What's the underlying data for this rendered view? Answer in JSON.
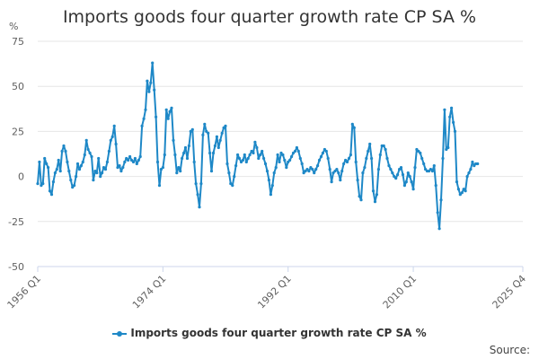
{
  "chart_data": {
    "type": "line",
    "title": "Imports goods four quarter growth rate CP SA %",
    "ylabel": "%",
    "ylim": [
      -50,
      75
    ],
    "yticks": [
      -50,
      -25,
      0,
      25,
      50,
      75
    ],
    "xticks": [
      "1956 Q1",
      "1974 Q1",
      "1992 Q1",
      "2010 Q1",
      "2025 Q4"
    ],
    "grid": "horizontal",
    "legend_position": "bottom",
    "source_label": "Source:",
    "series": [
      {
        "name": "Imports goods four quarter growth rate CP SA %",
        "color": "#1e88c7",
        "points": [
          [
            1956.0,
            -4
          ],
          [
            1956.25,
            8
          ],
          [
            1956.5,
            -5
          ],
          [
            1956.75,
            -4
          ],
          [
            1957.0,
            10
          ],
          [
            1957.25,
            7
          ],
          [
            1957.5,
            5
          ],
          [
            1957.75,
            -8
          ],
          [
            1958.0,
            -10
          ],
          [
            1958.25,
            -3
          ],
          [
            1958.5,
            2
          ],
          [
            1958.75,
            4
          ],
          [
            1959.0,
            9
          ],
          [
            1959.25,
            3
          ],
          [
            1959.5,
            14
          ],
          [
            1959.75,
            17
          ],
          [
            1960.0,
            14
          ],
          [
            1960.25,
            8
          ],
          [
            1960.5,
            3
          ],
          [
            1960.75,
            -2
          ],
          [
            1961.0,
            -6
          ],
          [
            1961.25,
            -5
          ],
          [
            1961.5,
            0
          ],
          [
            1961.75,
            7
          ],
          [
            1962.0,
            4
          ],
          [
            1962.25,
            6
          ],
          [
            1962.5,
            8
          ],
          [
            1962.75,
            12
          ],
          [
            1963.0,
            20
          ],
          [
            1963.25,
            15
          ],
          [
            1963.5,
            13
          ],
          [
            1963.75,
            11
          ],
          [
            1964.0,
            -2
          ],
          [
            1964.25,
            3
          ],
          [
            1964.5,
            2
          ],
          [
            1964.75,
            10
          ],
          [
            1965.0,
            0
          ],
          [
            1965.25,
            2
          ],
          [
            1965.5,
            5
          ],
          [
            1965.75,
            4
          ],
          [
            1966.0,
            8
          ],
          [
            1966.25,
            14
          ],
          [
            1966.5,
            20
          ],
          [
            1966.75,
            22
          ],
          [
            1967.0,
            28
          ],
          [
            1967.25,
            18
          ],
          [
            1967.5,
            5
          ],
          [
            1967.75,
            6
          ],
          [
            1968.0,
            3
          ],
          [
            1968.25,
            5
          ],
          [
            1968.5,
            8
          ],
          [
            1968.75,
            10
          ],
          [
            1969.0,
            9
          ],
          [
            1969.25,
            11
          ],
          [
            1969.5,
            9
          ],
          [
            1969.75,
            8
          ],
          [
            1970.0,
            10
          ],
          [
            1970.25,
            7
          ],
          [
            1970.5,
            9
          ],
          [
            1970.75,
            11
          ],
          [
            1971.0,
            28
          ],
          [
            1971.25,
            32
          ],
          [
            1971.5,
            37
          ],
          [
            1971.75,
            53
          ],
          [
            1972.0,
            47
          ],
          [
            1972.25,
            52
          ],
          [
            1972.5,
            63
          ],
          [
            1972.75,
            48
          ],
          [
            1973.0,
            33
          ],
          [
            1973.25,
            8
          ],
          [
            1973.5,
            -5
          ],
          [
            1973.75,
            4
          ],
          [
            1974.0,
            5
          ],
          [
            1974.25,
            12
          ],
          [
            1974.5,
            37
          ],
          [
            1974.75,
            32
          ],
          [
            1975.0,
            36
          ],
          [
            1975.25,
            38
          ],
          [
            1975.5,
            20
          ],
          [
            1975.75,
            12
          ],
          [
            1976.0,
            2
          ],
          [
            1976.25,
            5
          ],
          [
            1976.5,
            3
          ],
          [
            1976.75,
            10
          ],
          [
            1977.0,
            13
          ],
          [
            1977.25,
            16
          ],
          [
            1977.5,
            10
          ],
          [
            1977.75,
            17
          ],
          [
            1978.0,
            25
          ],
          [
            1978.25,
            26
          ],
          [
            1978.5,
            8
          ],
          [
            1978.75,
            -4
          ],
          [
            1979.0,
            -10
          ],
          [
            1979.25,
            -17
          ],
          [
            1979.5,
            -4
          ],
          [
            1979.75,
            23
          ],
          [
            1980.0,
            29
          ],
          [
            1980.25,
            25
          ],
          [
            1980.5,
            24
          ],
          [
            1980.75,
            13
          ],
          [
            1981.0,
            3
          ],
          [
            1981.25,
            13
          ],
          [
            1981.5,
            17
          ],
          [
            1981.75,
            22
          ],
          [
            1982.0,
            16
          ],
          [
            1982.25,
            20
          ],
          [
            1982.5,
            24
          ],
          [
            1982.75,
            27
          ],
          [
            1983.0,
            28
          ],
          [
            1983.25,
            7
          ],
          [
            1983.5,
            2
          ],
          [
            1983.75,
            -4
          ],
          [
            1984.0,
            -5
          ],
          [
            1984.25,
            0
          ],
          [
            1984.5,
            6
          ],
          [
            1984.75,
            12
          ],
          [
            1985.0,
            10
          ],
          [
            1985.25,
            8
          ],
          [
            1985.5,
            9
          ],
          [
            1985.75,
            12
          ],
          [
            1986.0,
            8
          ],
          [
            1986.25,
            10
          ],
          [
            1986.5,
            12
          ],
          [
            1986.75,
            14
          ],
          [
            1987.0,
            13
          ],
          [
            1987.25,
            19
          ],
          [
            1987.5,
            16
          ],
          [
            1987.75,
            10
          ],
          [
            1988.0,
            12
          ],
          [
            1988.25,
            14
          ],
          [
            1988.5,
            10
          ],
          [
            1988.75,
            7
          ],
          [
            1989.0,
            3
          ],
          [
            1989.25,
            -2
          ],
          [
            1989.5,
            -10
          ],
          [
            1989.75,
            -5
          ],
          [
            1990.0,
            2
          ],
          [
            1990.25,
            5
          ],
          [
            1990.5,
            12
          ],
          [
            1990.75,
            8
          ],
          [
            1991.0,
            13
          ],
          [
            1991.25,
            12
          ],
          [
            1991.5,
            9
          ],
          [
            1991.75,
            5
          ],
          [
            1992.0,
            8
          ],
          [
            1992.25,
            9
          ],
          [
            1992.5,
            11
          ],
          [
            1992.75,
            13
          ],
          [
            1993.0,
            14
          ],
          [
            1993.25,
            16
          ],
          [
            1993.5,
            14
          ],
          [
            1993.75,
            10
          ],
          [
            1994.0,
            7
          ],
          [
            1994.25,
            2
          ],
          [
            1994.5,
            3
          ],
          [
            1994.75,
            4
          ],
          [
            1995.0,
            3
          ],
          [
            1995.25,
            5
          ],
          [
            1995.5,
            4
          ],
          [
            1995.75,
            2
          ],
          [
            1996.0,
            4
          ],
          [
            1996.25,
            6
          ],
          [
            1996.5,
            9
          ],
          [
            1996.75,
            11
          ],
          [
            1997.0,
            13
          ],
          [
            1997.25,
            15
          ],
          [
            1997.5,
            14
          ],
          [
            1997.75,
            10
          ],
          [
            1998.0,
            4
          ],
          [
            1998.25,
            -3
          ],
          [
            1998.5,
            2
          ],
          [
            1998.75,
            3
          ],
          [
            1999.0,
            4
          ],
          [
            1999.25,
            2
          ],
          [
            1999.5,
            -2
          ],
          [
            1999.75,
            3
          ],
          [
            2000.0,
            7
          ],
          [
            2000.25,
            9
          ],
          [
            2000.5,
            8
          ],
          [
            2000.75,
            10
          ],
          [
            2001.0,
            12
          ],
          [
            2001.25,
            29
          ],
          [
            2001.5,
            27
          ],
          [
            2001.75,
            8
          ],
          [
            2002.0,
            -2
          ],
          [
            2002.25,
            -11
          ],
          [
            2002.5,
            -13
          ],
          [
            2002.75,
            2
          ],
          [
            2003.0,
            5
          ],
          [
            2003.25,
            10
          ],
          [
            2003.5,
            14
          ],
          [
            2003.75,
            18
          ],
          [
            2004.0,
            10
          ],
          [
            2004.25,
            -8
          ],
          [
            2004.5,
            -14
          ],
          [
            2004.75,
            -10
          ],
          [
            2005.0,
            4
          ],
          [
            2005.25,
            12
          ],
          [
            2005.5,
            17
          ],
          [
            2005.75,
            17
          ],
          [
            2006.0,
            15
          ],
          [
            2006.25,
            10
          ],
          [
            2006.5,
            6
          ],
          [
            2006.75,
            4
          ],
          [
            2007.0,
            2
          ],
          [
            2007.25,
            0
          ],
          [
            2007.5,
            -1
          ],
          [
            2007.75,
            1
          ],
          [
            2008.0,
            4
          ],
          [
            2008.25,
            5
          ],
          [
            2008.5,
            1
          ],
          [
            2008.75,
            -5
          ],
          [
            2009.0,
            -3
          ],
          [
            2009.25,
            2
          ],
          [
            2009.5,
            0
          ],
          [
            2009.75,
            -3
          ],
          [
            2010.0,
            -7
          ],
          [
            2010.25,
            5
          ],
          [
            2010.5,
            15
          ],
          [
            2010.75,
            14
          ],
          [
            2011.0,
            13
          ],
          [
            2011.25,
            10
          ],
          [
            2011.5,
            7
          ],
          [
            2011.75,
            4
          ],
          [
            2012.0,
            3
          ],
          [
            2012.25,
            3
          ],
          [
            2012.5,
            4
          ],
          [
            2012.75,
            3
          ],
          [
            2013.0,
            6
          ],
          [
            2013.25,
            -5
          ],
          [
            2013.5,
            -20
          ],
          [
            2013.75,
            -29
          ],
          [
            2014.0,
            -13
          ],
          [
            2014.25,
            10
          ],
          [
            2014.5,
            37
          ],
          [
            2014.75,
            15
          ],
          [
            2015.0,
            16
          ],
          [
            2015.25,
            33
          ],
          [
            2015.5,
            38
          ],
          [
            2015.75,
            30
          ],
          [
            2016.0,
            25
          ],
          [
            2016.25,
            -3
          ],
          [
            2016.5,
            -7
          ],
          [
            2016.75,
            -10
          ],
          [
            2017.0,
            -9
          ],
          [
            2017.25,
            -7
          ],
          [
            2017.5,
            -8
          ],
          [
            2017.75,
            0
          ],
          [
            2018.0,
            2
          ],
          [
            2018.25,
            4
          ],
          [
            2018.5,
            8
          ],
          [
            2018.75,
            6
          ],
          [
            2019.0,
            7
          ],
          [
            2019.25,
            7
          ]
        ]
      }
    ]
  }
}
